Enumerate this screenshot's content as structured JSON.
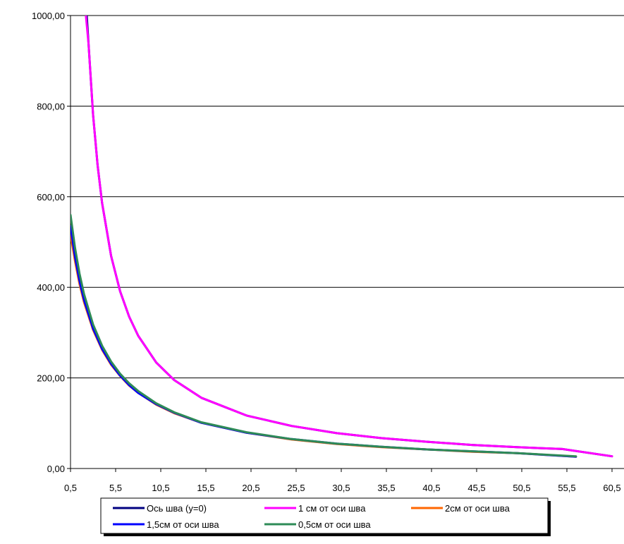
{
  "chart_data": {
    "type": "line",
    "xlabel": "",
    "ylabel": "",
    "ylim": [
      0,
      1000
    ],
    "xlim": [
      0.5,
      60.5
    ],
    "grid": "horizontal",
    "legend_position": "bottom",
    "y_ticks": [
      "0,00",
      "200,00",
      "400,00",
      "600,00",
      "800,00",
      "1000,00"
    ],
    "x_ticks": [
      "0,5",
      "5,5",
      "10,5",
      "15,5",
      "20,5",
      "25,5",
      "30,5",
      "35,5",
      "40,5",
      "45,5",
      "50,5",
      "55,5",
      "60,5"
    ],
    "series": [
      {
        "name": "Ось шва (у=0)",
        "color": "#000080",
        "x": [
          2.3,
          2.5,
          3,
          3.5,
          4,
          5,
          6,
          7,
          8,
          10,
          12,
          15,
          20,
          25,
          30,
          35,
          40,
          45,
          50,
          55,
          60.5
        ],
        "y": [
          1000,
          937,
          781,
          670,
          586,
          469,
          391,
          335,
          293,
          234,
          195,
          156,
          117,
          94,
          78,
          67,
          59,
          52,
          47,
          43,
          27
        ]
      },
      {
        "name": "1 см от оси шва",
        "color": "#ff00ff",
        "x": [
          2.2,
          2.5,
          3,
          3.5,
          4,
          5,
          6,
          7,
          8,
          10,
          12,
          15,
          20,
          25,
          30,
          35,
          40,
          45,
          50,
          55,
          60.5
        ],
        "y": [
          1000,
          937,
          781,
          670,
          586,
          469,
          391,
          335,
          293,
          234,
          195,
          156,
          117,
          94,
          78,
          67,
          59,
          52,
          47,
          43,
          27
        ]
      },
      {
        "name": "2см от оси шва",
        "color": "#ff6600",
        "x": [
          0.5,
          1,
          1.5,
          2,
          3,
          4,
          5,
          6,
          7,
          8,
          10,
          12,
          15,
          20,
          25,
          30,
          35,
          40,
          45,
          50,
          56.5
        ],
        "y": [
          517,
          458,
          407,
          367,
          306,
          262,
          229,
          204,
          183,
          167,
          141,
          122,
          101,
          79,
          64,
          54,
          47,
          42,
          37,
          34,
          26
        ]
      },
      {
        "name": "1,5см от оси шва",
        "color": "#0000ff",
        "x": [
          0.5,
          1,
          1.5,
          2,
          3,
          4,
          5,
          6,
          7,
          8,
          10,
          12,
          15,
          20,
          25,
          30,
          35,
          40,
          45,
          50,
          56.5
        ],
        "y": [
          535,
          467,
          414,
          372,
          309,
          264,
          231,
          205,
          184,
          167,
          142,
          123,
          101,
          79,
          65,
          55,
          48,
          42,
          38,
          34,
          26
        ]
      },
      {
        "name": "0,5см от оси шва",
        "color": "#2e8b57",
        "x": [
          0.5,
          1,
          1.5,
          2,
          3,
          4,
          5,
          6,
          7,
          8,
          10,
          12,
          15,
          20,
          25,
          30,
          35,
          40,
          45,
          50,
          56.5
        ],
        "y": [
          560,
          487,
          430,
          385,
          318,
          271,
          236,
          209,
          188,
          171,
          144,
          124,
          102,
          80,
          65,
          55,
          48,
          42,
          38,
          34,
          27
        ]
      }
    ]
  }
}
